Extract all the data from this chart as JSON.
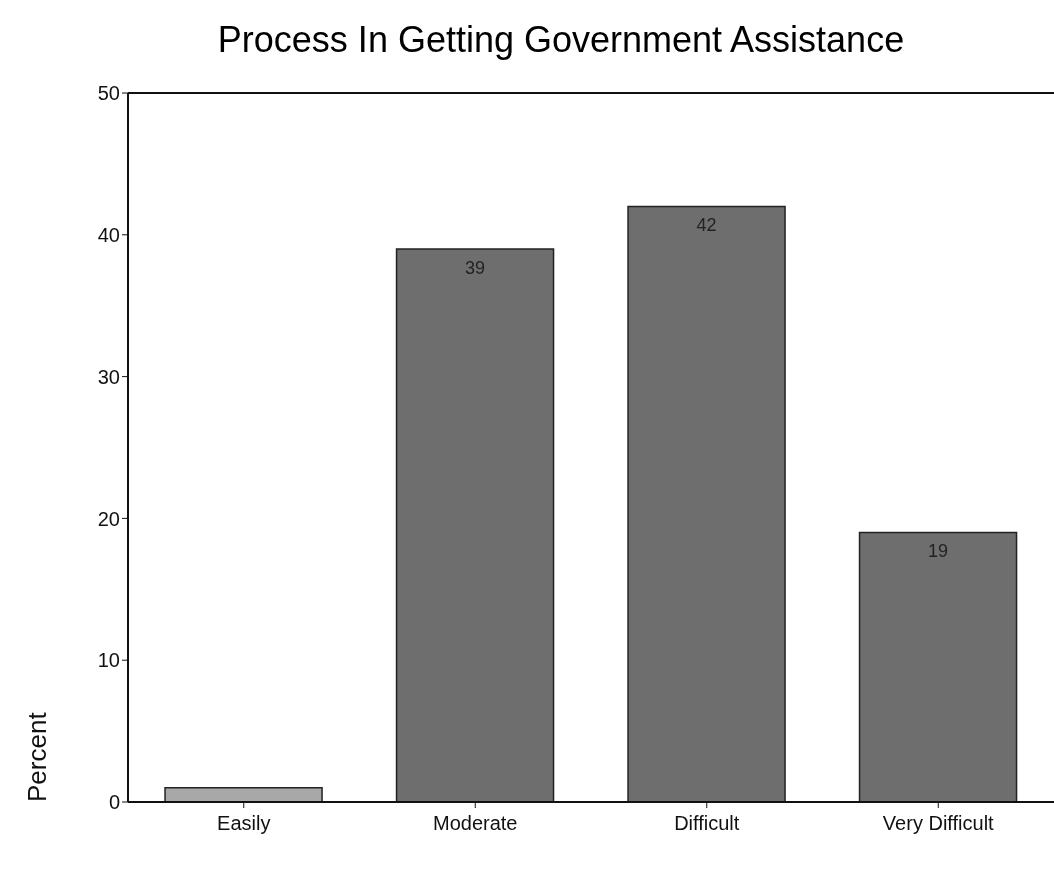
{
  "chart_data": {
    "type": "bar",
    "title": "Process In Getting Government Assistance",
    "ylabel": "Percent",
    "categories": [
      "Easily",
      "Moderate",
      "Difficult",
      "Very Difficult"
    ],
    "values": [
      1,
      39,
      42,
      19
    ],
    "value_labels": [
      null,
      "39",
      "42",
      "19"
    ],
    "colors": [
      "#a8a8a8",
      "#6e6e6e",
      "#6e6e6e",
      "#6e6e6e"
    ],
    "ylim": [
      0,
      50
    ],
    "yticks": [
      0,
      10,
      20,
      30,
      40,
      50
    ],
    "grid": false,
    "legend": false
  }
}
